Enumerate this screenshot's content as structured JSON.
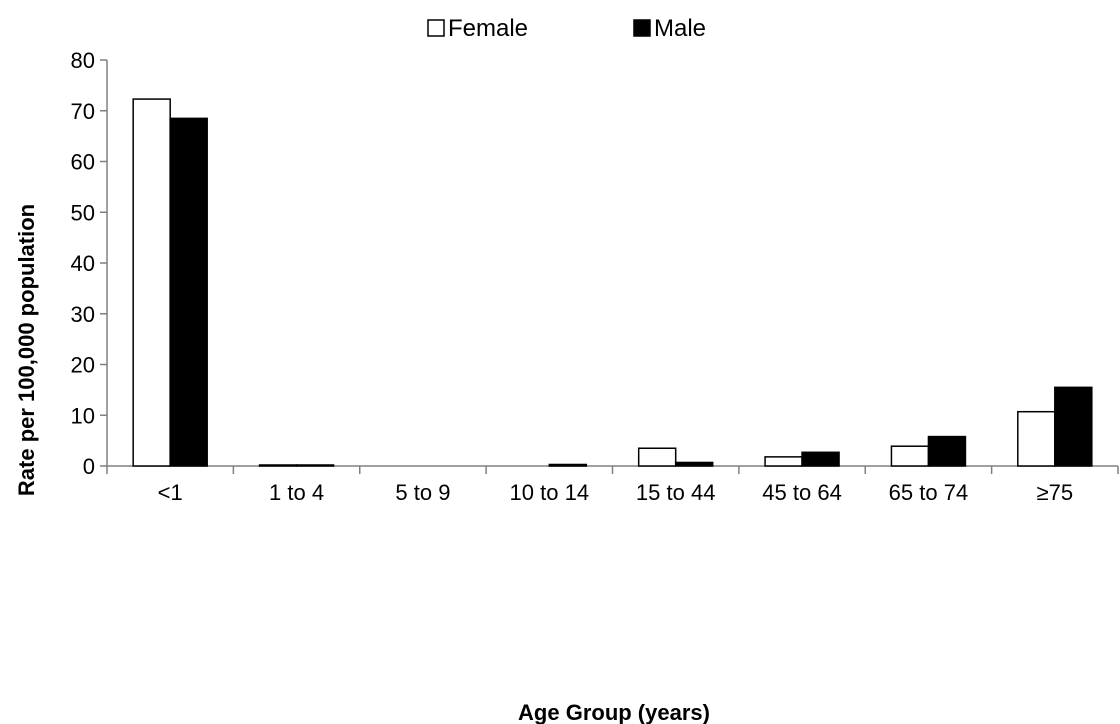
{
  "chart_data": {
    "type": "bar",
    "title": "",
    "xlabel": "Age Group (years)",
    "ylabel": "Rate per 100,000 population",
    "ylim": [
      0,
      80
    ],
    "yticks": [
      0,
      10,
      20,
      30,
      40,
      50,
      60,
      70,
      80
    ],
    "ytick_labels": [
      "0",
      "10",
      "20",
      "30",
      "40",
      "50",
      "60",
      "70",
      "80"
    ],
    "categories": [
      "<1",
      "1 to 4",
      "5 to 9",
      "10 to 14",
      "15 to 44",
      "45 to 64",
      "65 to 74",
      "≥75"
    ],
    "series": [
      {
        "name": "Female",
        "fill": "#ffffff",
        "stroke": "#000000",
        "values": [
          72.3,
          0.2,
          0.0,
          0.0,
          3.5,
          1.8,
          3.9,
          10.7
        ]
      },
      {
        "name": "Male",
        "fill": "#000000",
        "stroke": "#000000",
        "values": [
          68.5,
          0.2,
          0.0,
          0.3,
          0.7,
          2.7,
          5.8,
          15.5
        ]
      }
    ],
    "legend": {
      "position": "top-center",
      "markers": [
        "□",
        "■"
      ]
    },
    "grid": false
  }
}
